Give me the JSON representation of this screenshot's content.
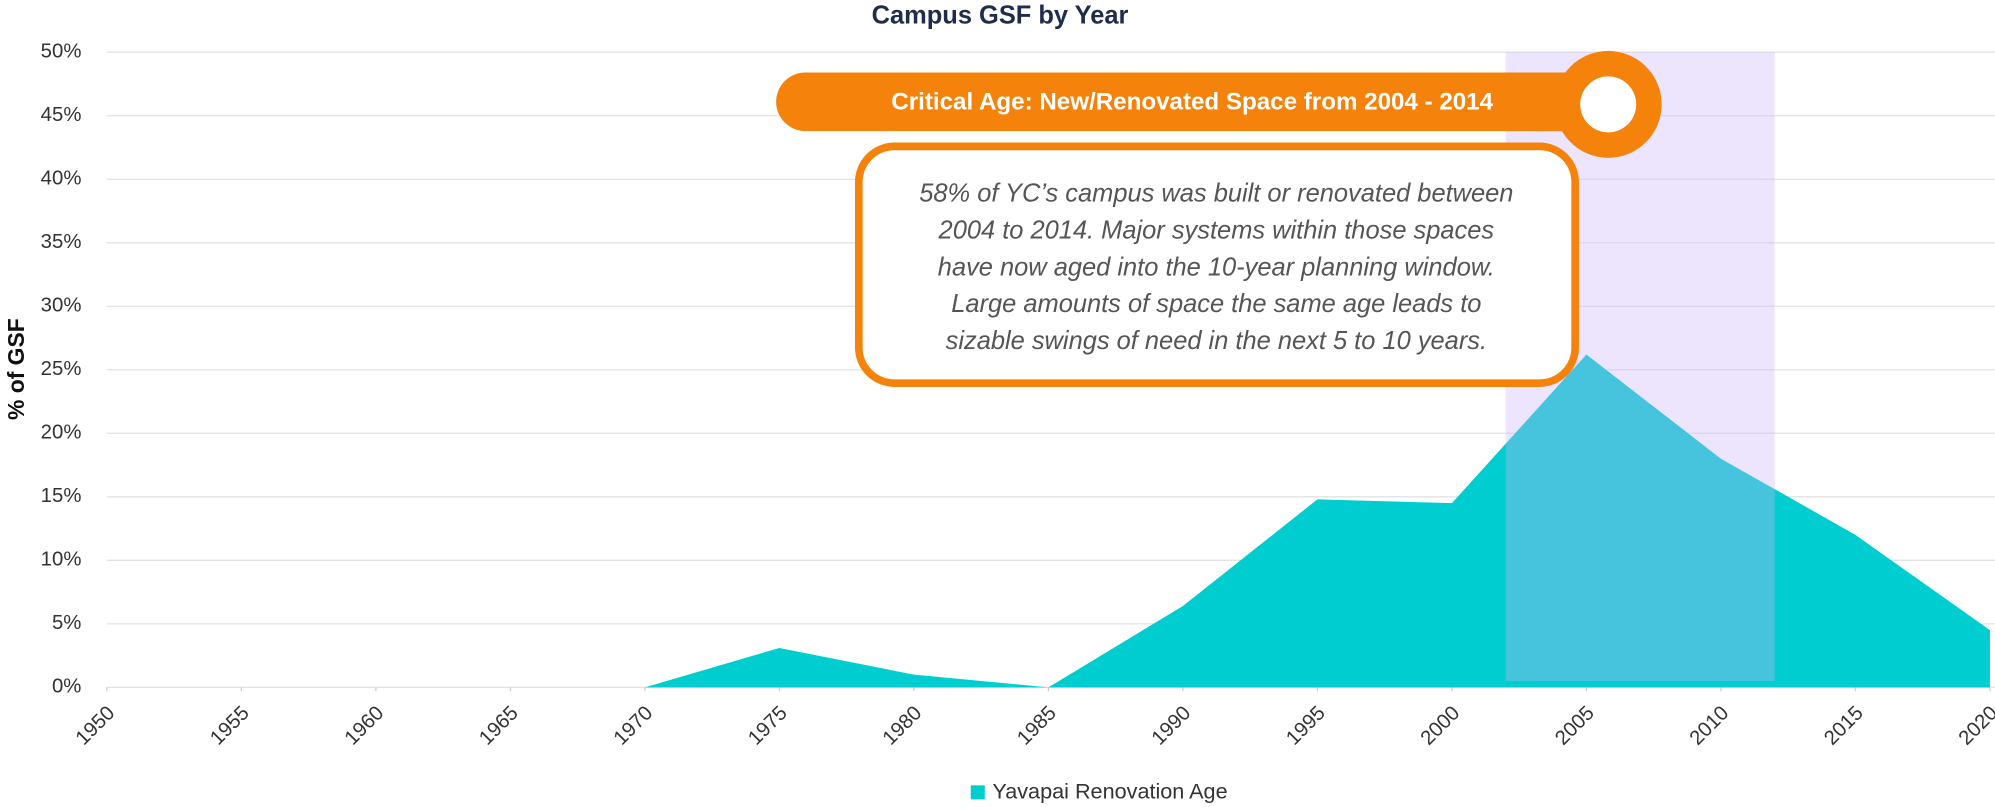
{
  "chart_data": {
    "type": "area",
    "title": "Campus GSF by Year",
    "ylabel": "% of GSF",
    "x": [
      1950,
      1955,
      1960,
      1965,
      1970,
      1975,
      1980,
      1985,
      1990,
      1995,
      2000,
      2005,
      2010,
      2015,
      2020
    ],
    "series": [
      {
        "name": "Yavapai Renovation Age",
        "color": "#00cdd0",
        "values": [
          0,
          0,
          0,
          0,
          0,
          3.1,
          1,
          0,
          6.4,
          14.8,
          14.5,
          26.2,
          18,
          12,
          4.5
        ]
      }
    ],
    "xlim": [
      1950,
      2020
    ],
    "xticks": [
      1950,
      1955,
      1960,
      1965,
      1970,
      1975,
      1980,
      1985,
      1990,
      1995,
      2000,
      2005,
      2010,
      2015,
      2020
    ],
    "ylim": [
      0,
      50
    ],
    "yticks": [
      {
        "value": 0,
        "label": "0%"
      },
      {
        "value": 5,
        "label": "5%"
      },
      {
        "value": 10,
        "label": "10%"
      },
      {
        "value": 15,
        "label": "15%"
      },
      {
        "value": 20,
        "label": "20%"
      },
      {
        "value": 25,
        "label": "25%"
      },
      {
        "value": 30,
        "label": "30%"
      },
      {
        "value": 35,
        "label": "35%"
      },
      {
        "value": 40,
        "label": "40%"
      },
      {
        "value": 45,
        "label": "45%"
      },
      {
        "value": 50,
        "label": "50%"
      }
    ],
    "grid": true,
    "legend": "bottom",
    "highlight_range": [
      2002,
      2012
    ],
    "highlight_color": "#c8b4f8",
    "annotation_title": "Critical Age: New/Renovated Space from 2004 - 2014",
    "annotation_lines": [
      "58% of YC’s campus was built or renovated between",
      "2004 to 2014. Major systems within those spaces",
      "have now aged into the 10-year planning window.",
      "Large amounts of space the same age leads to",
      "sizable swings of need in the next 5 to 10 years."
    ],
    "annotation_color": "#f5820a"
  }
}
